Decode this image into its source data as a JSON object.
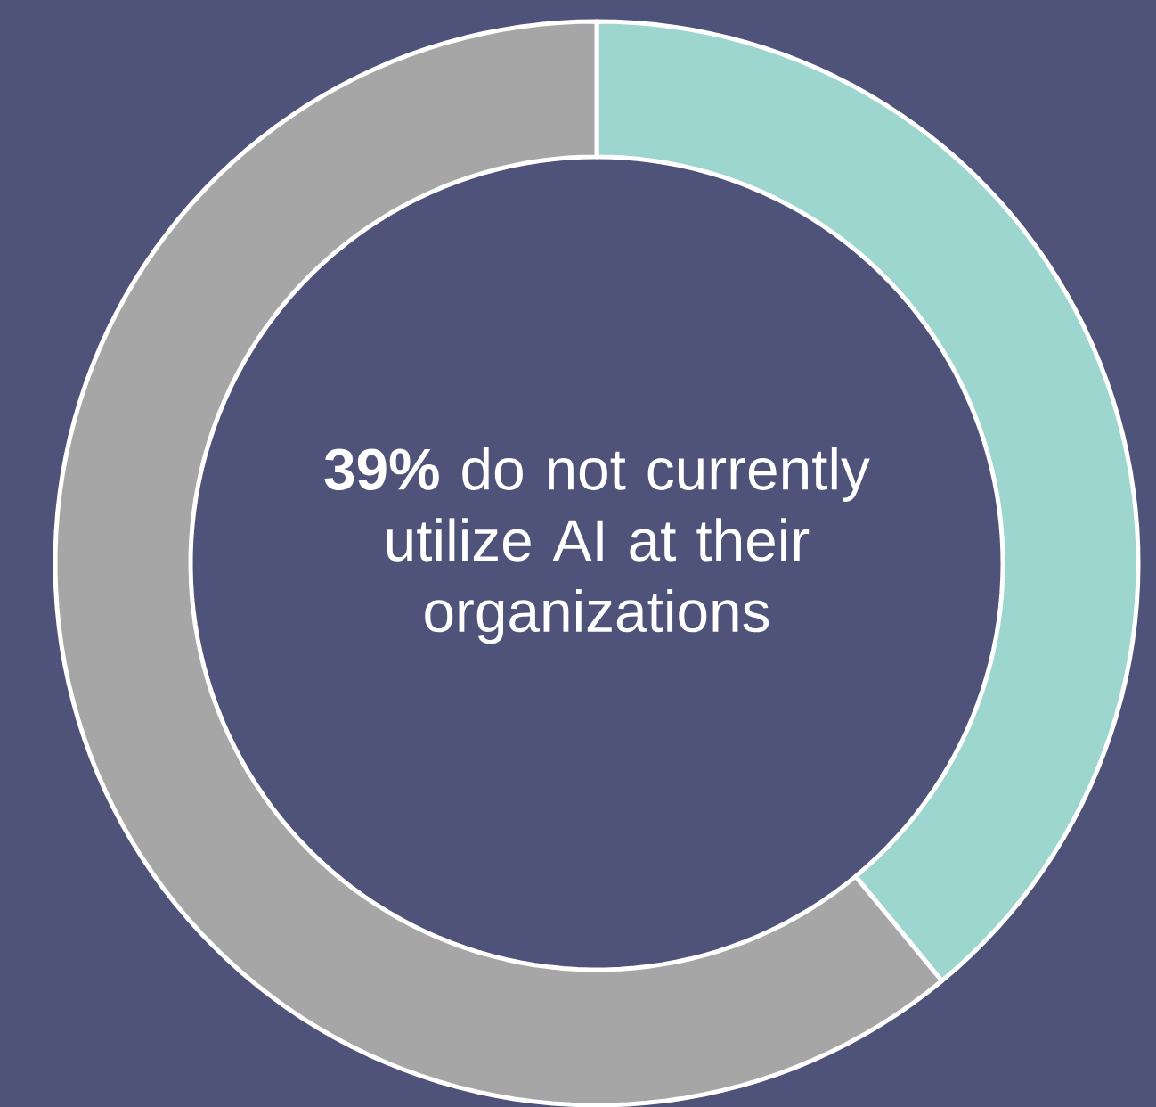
{
  "chart_data": {
    "type": "donut",
    "categories": [
      null,
      null
    ],
    "values": [
      39,
      61
    ],
    "colors": [
      "#9dd5cf",
      "#a6a6a6"
    ],
    "annotations": [
      "**39%** do not currently utilize AI at their organizations"
    ]
  }
}
